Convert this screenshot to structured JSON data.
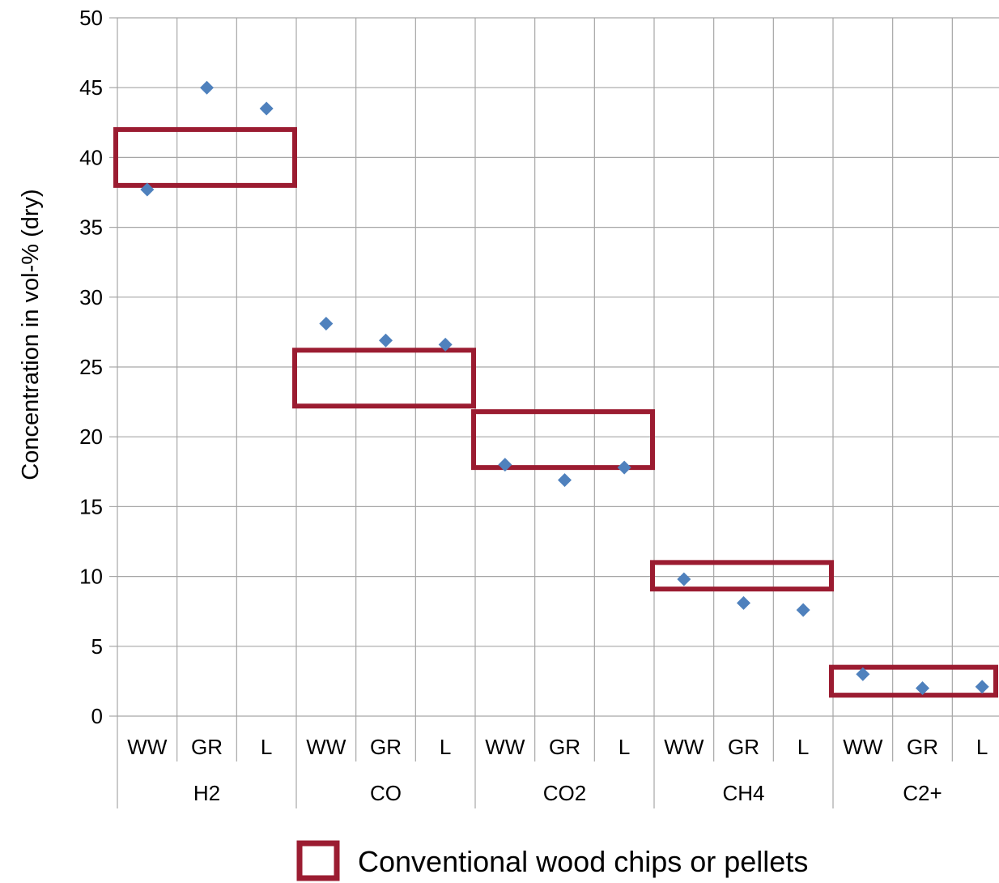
{
  "chart_data": {
    "type": "scatter",
    "title": "",
    "ylabel": "Concentration in vol-% (dry)",
    "xlabel": "",
    "ylim": [
      0,
      50
    ],
    "yticks": [
      0,
      5,
      10,
      15,
      20,
      25,
      30,
      35,
      40,
      45,
      50
    ],
    "grid": true,
    "groups": [
      "H2",
      "CO",
      "CO2",
      "CH4",
      "C2+"
    ],
    "subcategories": [
      "WW",
      "GR",
      "L"
    ],
    "series": [
      {
        "values": [
          [
            37.7,
            45.0,
            43.5
          ],
          [
            28.1,
            26.9,
            26.6
          ],
          [
            18.0,
            16.9,
            17.8
          ],
          [
            9.8,
            8.1,
            7.6
          ],
          [
            3.0,
            2.0,
            2.1
          ]
        ],
        "marker": "diamond",
        "color": "#4f81bd"
      }
    ],
    "conventional_ranges": [
      {
        "group": "H2",
        "min": 38.0,
        "max": 42.0
      },
      {
        "group": "CO",
        "min": 22.2,
        "max": 26.2
      },
      {
        "group": "CO2",
        "min": 17.8,
        "max": 21.8
      },
      {
        "group": "CH4",
        "min": 9.1,
        "max": 11.0
      },
      {
        "group": "C2+",
        "min": 1.5,
        "max": 3.5
      }
    ],
    "legend": {
      "label": "Conventional wood chips or pellets",
      "position": "bottom",
      "color": "#9b1c31"
    }
  }
}
